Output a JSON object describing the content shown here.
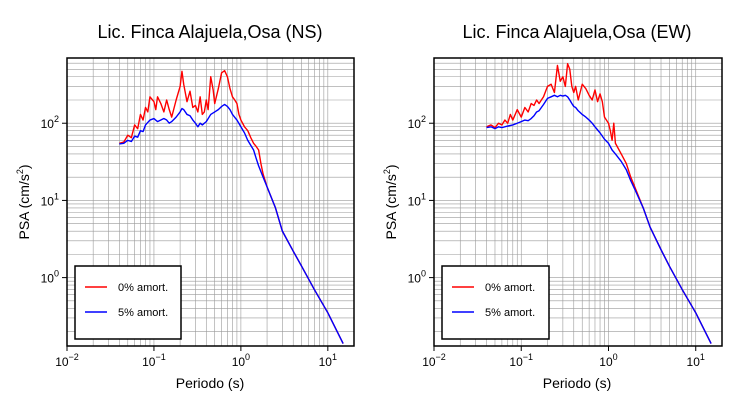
{
  "chart_data": [
    {
      "type": "line",
      "title": "Lic. Finca Alajuela,Osa (NS)",
      "xlabel": "Periodo (s)",
      "ylabel": "PSA (cm/s",
      "ylabel_sup": "2",
      "ylabel_close": ")",
      "xscale": "log",
      "yscale": "log",
      "xlim": [
        0.01,
        20
      ],
      "ylim": [
        0.13,
        700
      ],
      "grid": true,
      "legend_position": "bottom-left",
      "x_ticks": [
        {
          "base": "10",
          "exp": "−2",
          "value": 0.01
        },
        {
          "base": "10",
          "exp": "−1",
          "value": 0.1
        },
        {
          "base": "10",
          "exp": "0",
          "value": 1
        },
        {
          "base": "10",
          "exp": "1",
          "value": 10
        }
      ],
      "y_ticks": [
        {
          "base": "10",
          "exp": "0",
          "value": 1
        },
        {
          "base": "10",
          "exp": "1",
          "value": 10
        },
        {
          "base": "10",
          "exp": "2",
          "value": 100
        }
      ],
      "series": [
        {
          "name": "0% amort.",
          "color": "#ff0000",
          "points": [
            [
              0.04,
              55
            ],
            [
              0.045,
              57
            ],
            [
              0.05,
              70
            ],
            [
              0.055,
              65
            ],
            [
              0.06,
              95
            ],
            [
              0.065,
              85
            ],
            [
              0.07,
              130
            ],
            [
              0.075,
              110
            ],
            [
              0.08,
              160
            ],
            [
              0.085,
              140
            ],
            [
              0.09,
              220
            ],
            [
              0.1,
              190
            ],
            [
              0.105,
              150
            ],
            [
              0.11,
              220
            ],
            [
              0.12,
              180
            ],
            [
              0.13,
              140
            ],
            [
              0.14,
              200
            ],
            [
              0.15,
              150
            ],
            [
              0.16,
              120
            ],
            [
              0.18,
              200
            ],
            [
              0.2,
              300
            ],
            [
              0.21,
              470
            ],
            [
              0.22,
              320
            ],
            [
              0.24,
              190
            ],
            [
              0.26,
              260
            ],
            [
              0.28,
              160
            ],
            [
              0.3,
              170
            ],
            [
              0.32,
              140
            ],
            [
              0.34,
              220
            ],
            [
              0.36,
              130
            ],
            [
              0.38,
              140
            ],
            [
              0.4,
              200
            ],
            [
              0.42,
              150
            ],
            [
              0.45,
              400
            ],
            [
              0.48,
              270
            ],
            [
              0.5,
              180
            ],
            [
              0.55,
              280
            ],
            [
              0.6,
              450
            ],
            [
              0.65,
              480
            ],
            [
              0.7,
              400
            ],
            [
              0.75,
              280
            ],
            [
              0.8,
              220
            ],
            [
              0.85,
              200
            ],
            [
              0.9,
              180
            ],
            [
              0.95,
              130
            ],
            [
              1.0,
              110
            ],
            [
              1.1,
              90
            ],
            [
              1.2,
              80
            ],
            [
              1.3,
              65
            ],
            [
              1.4,
              55
            ],
            [
              1.5,
              50
            ],
            [
              1.6,
              45
            ],
            [
              1.7,
              30
            ],
            [
              1.8,
              22
            ],
            [
              2.0,
              15
            ],
            [
              2.5,
              8
            ],
            [
              3.0,
              4
            ],
            [
              4.0,
              2.2
            ],
            [
              5.0,
              1.4
            ],
            [
              7.0,
              0.7
            ],
            [
              10.0,
              0.35
            ],
            [
              15.0,
              0.14
            ]
          ]
        },
        {
          "name": "5% amort.",
          "color": "#0000ff",
          "points": [
            [
              0.04,
              54
            ],
            [
              0.045,
              55
            ],
            [
              0.05,
              60
            ],
            [
              0.055,
              58
            ],
            [
              0.06,
              68
            ],
            [
              0.065,
              66
            ],
            [
              0.07,
              80
            ],
            [
              0.075,
              78
            ],
            [
              0.08,
              95
            ],
            [
              0.09,
              110
            ],
            [
              0.1,
              115
            ],
            [
              0.11,
              105
            ],
            [
              0.12,
              110
            ],
            [
              0.13,
              115
            ],
            [
              0.14,
              110
            ],
            [
              0.15,
              100
            ],
            [
              0.16,
              105
            ],
            [
              0.18,
              120
            ],
            [
              0.2,
              140
            ],
            [
              0.21,
              155
            ],
            [
              0.22,
              150
            ],
            [
              0.24,
              130
            ],
            [
              0.26,
              125
            ],
            [
              0.28,
              110
            ],
            [
              0.3,
              100
            ],
            [
              0.32,
              90
            ],
            [
              0.34,
              100
            ],
            [
              0.36,
              95
            ],
            [
              0.4,
              105
            ],
            [
              0.45,
              130
            ],
            [
              0.5,
              140
            ],
            [
              0.55,
              150
            ],
            [
              0.6,
              165
            ],
            [
              0.65,
              175
            ],
            [
              0.7,
              165
            ],
            [
              0.75,
              150
            ],
            [
              0.8,
              130
            ],
            [
              0.9,
              110
            ],
            [
              1.0,
              90
            ],
            [
              1.1,
              75
            ],
            [
              1.2,
              60
            ],
            [
              1.4,
              45
            ],
            [
              1.5,
              35
            ],
            [
              1.6,
              28
            ],
            [
              1.8,
              20
            ],
            [
              2.0,
              15
            ],
            [
              2.5,
              8
            ],
            [
              3.0,
              4
            ],
            [
              4.0,
              2.2
            ],
            [
              5.0,
              1.4
            ],
            [
              7.0,
              0.7
            ],
            [
              10.0,
              0.35
            ],
            [
              15.0,
              0.14
            ]
          ]
        }
      ]
    },
    {
      "type": "line",
      "title": "Lic. Finca Alajuela,Osa (EW)",
      "xlabel": "Periodo (s)",
      "ylabel": "PSA (cm/s",
      "ylabel_sup": "2",
      "ylabel_close": ")",
      "xscale": "log",
      "yscale": "log",
      "xlim": [
        0.01,
        20
      ],
      "ylim": [
        0.13,
        700
      ],
      "grid": true,
      "legend_position": "bottom-left",
      "x_ticks": [
        {
          "base": "10",
          "exp": "−2",
          "value": 0.01
        },
        {
          "base": "10",
          "exp": "−1",
          "value": 0.1
        },
        {
          "base": "10",
          "exp": "0",
          "value": 1
        },
        {
          "base": "10",
          "exp": "1",
          "value": 10
        }
      ],
      "y_ticks": [
        {
          "base": "10",
          "exp": "0",
          "value": 1
        },
        {
          "base": "10",
          "exp": "1",
          "value": 10
        },
        {
          "base": "10",
          "exp": "2",
          "value": 100
        }
      ],
      "series": [
        {
          "name": "0% amort.",
          "color": "#ff0000",
          "points": [
            [
              0.04,
              90
            ],
            [
              0.045,
              95
            ],
            [
              0.05,
              88
            ],
            [
              0.055,
              100
            ],
            [
              0.06,
              95
            ],
            [
              0.065,
              110
            ],
            [
              0.07,
              100
            ],
            [
              0.075,
              130
            ],
            [
              0.08,
              110
            ],
            [
              0.09,
              150
            ],
            [
              0.1,
              120
            ],
            [
              0.11,
              160
            ],
            [
              0.12,
              140
            ],
            [
              0.13,
              180
            ],
            [
              0.14,
              170
            ],
            [
              0.15,
              200
            ],
            [
              0.16,
              180
            ],
            [
              0.18,
              220
            ],
            [
              0.2,
              300
            ],
            [
              0.22,
              320
            ],
            [
              0.24,
              250
            ],
            [
              0.26,
              560
            ],
            [
              0.28,
              350
            ],
            [
              0.3,
              400
            ],
            [
              0.32,
              300
            ],
            [
              0.34,
              590
            ],
            [
              0.36,
              500
            ],
            [
              0.38,
              300
            ],
            [
              0.4,
              250
            ],
            [
              0.42,
              300
            ],
            [
              0.45,
              200
            ],
            [
              0.5,
              320
            ],
            [
              0.55,
              280
            ],
            [
              0.6,
              230
            ],
            [
              0.65,
              200
            ],
            [
              0.7,
              270
            ],
            [
              0.75,
              190
            ],
            [
              0.8,
              240
            ],
            [
              0.85,
              190
            ],
            [
              0.9,
              120
            ],
            [
              1.0,
              100
            ],
            [
              1.05,
              80
            ],
            [
              1.1,
              60
            ],
            [
              1.15,
              100
            ],
            [
              1.2,
              55
            ],
            [
              1.4,
              40
            ],
            [
              1.6,
              30
            ],
            [
              1.8,
              20
            ],
            [
              2.0,
              15
            ],
            [
              2.5,
              8
            ],
            [
              3.0,
              4.5
            ],
            [
              4.0,
              2.3
            ],
            [
              5.0,
              1.4
            ],
            [
              7.0,
              0.7
            ],
            [
              10.0,
              0.35
            ],
            [
              15.0,
              0.14
            ]
          ]
        },
        {
          "name": "5% amort.",
          "color": "#0000ff",
          "points": [
            [
              0.04,
              88
            ],
            [
              0.045,
              90
            ],
            [
              0.05,
              85
            ],
            [
              0.055,
              90
            ],
            [
              0.06,
              88
            ],
            [
              0.07,
              92
            ],
            [
              0.08,
              95
            ],
            [
              0.09,
              100
            ],
            [
              0.1,
              105
            ],
            [
              0.11,
              110
            ],
            [
              0.12,
              108
            ],
            [
              0.13,
              115
            ],
            [
              0.14,
              125
            ],
            [
              0.15,
              140
            ],
            [
              0.16,
              145
            ],
            [
              0.18,
              175
            ],
            [
              0.2,
              210
            ],
            [
              0.22,
              220
            ],
            [
              0.24,
              230
            ],
            [
              0.26,
              220
            ],
            [
              0.28,
              230
            ],
            [
              0.3,
              225
            ],
            [
              0.32,
              230
            ],
            [
              0.34,
              220
            ],
            [
              0.36,
              200
            ],
            [
              0.38,
              180
            ],
            [
              0.4,
              165
            ],
            [
              0.42,
              160
            ],
            [
              0.45,
              145
            ],
            [
              0.5,
              130
            ],
            [
              0.55,
              120
            ],
            [
              0.6,
              110
            ],
            [
              0.65,
              100
            ],
            [
              0.7,
              90
            ],
            [
              0.8,
              75
            ],
            [
              0.9,
              62
            ],
            [
              1.0,
              55
            ],
            [
              1.1,
              45
            ],
            [
              1.2,
              40
            ],
            [
              1.4,
              32
            ],
            [
              1.6,
              25
            ],
            [
              1.8,
              18
            ],
            [
              2.0,
              14
            ],
            [
              2.5,
              8
            ],
            [
              3.0,
              4.5
            ],
            [
              4.0,
              2.3
            ],
            [
              5.0,
              1.4
            ],
            [
              7.0,
              0.7
            ],
            [
              10.0,
              0.35
            ],
            [
              15.0,
              0.14
            ]
          ]
        }
      ]
    }
  ]
}
